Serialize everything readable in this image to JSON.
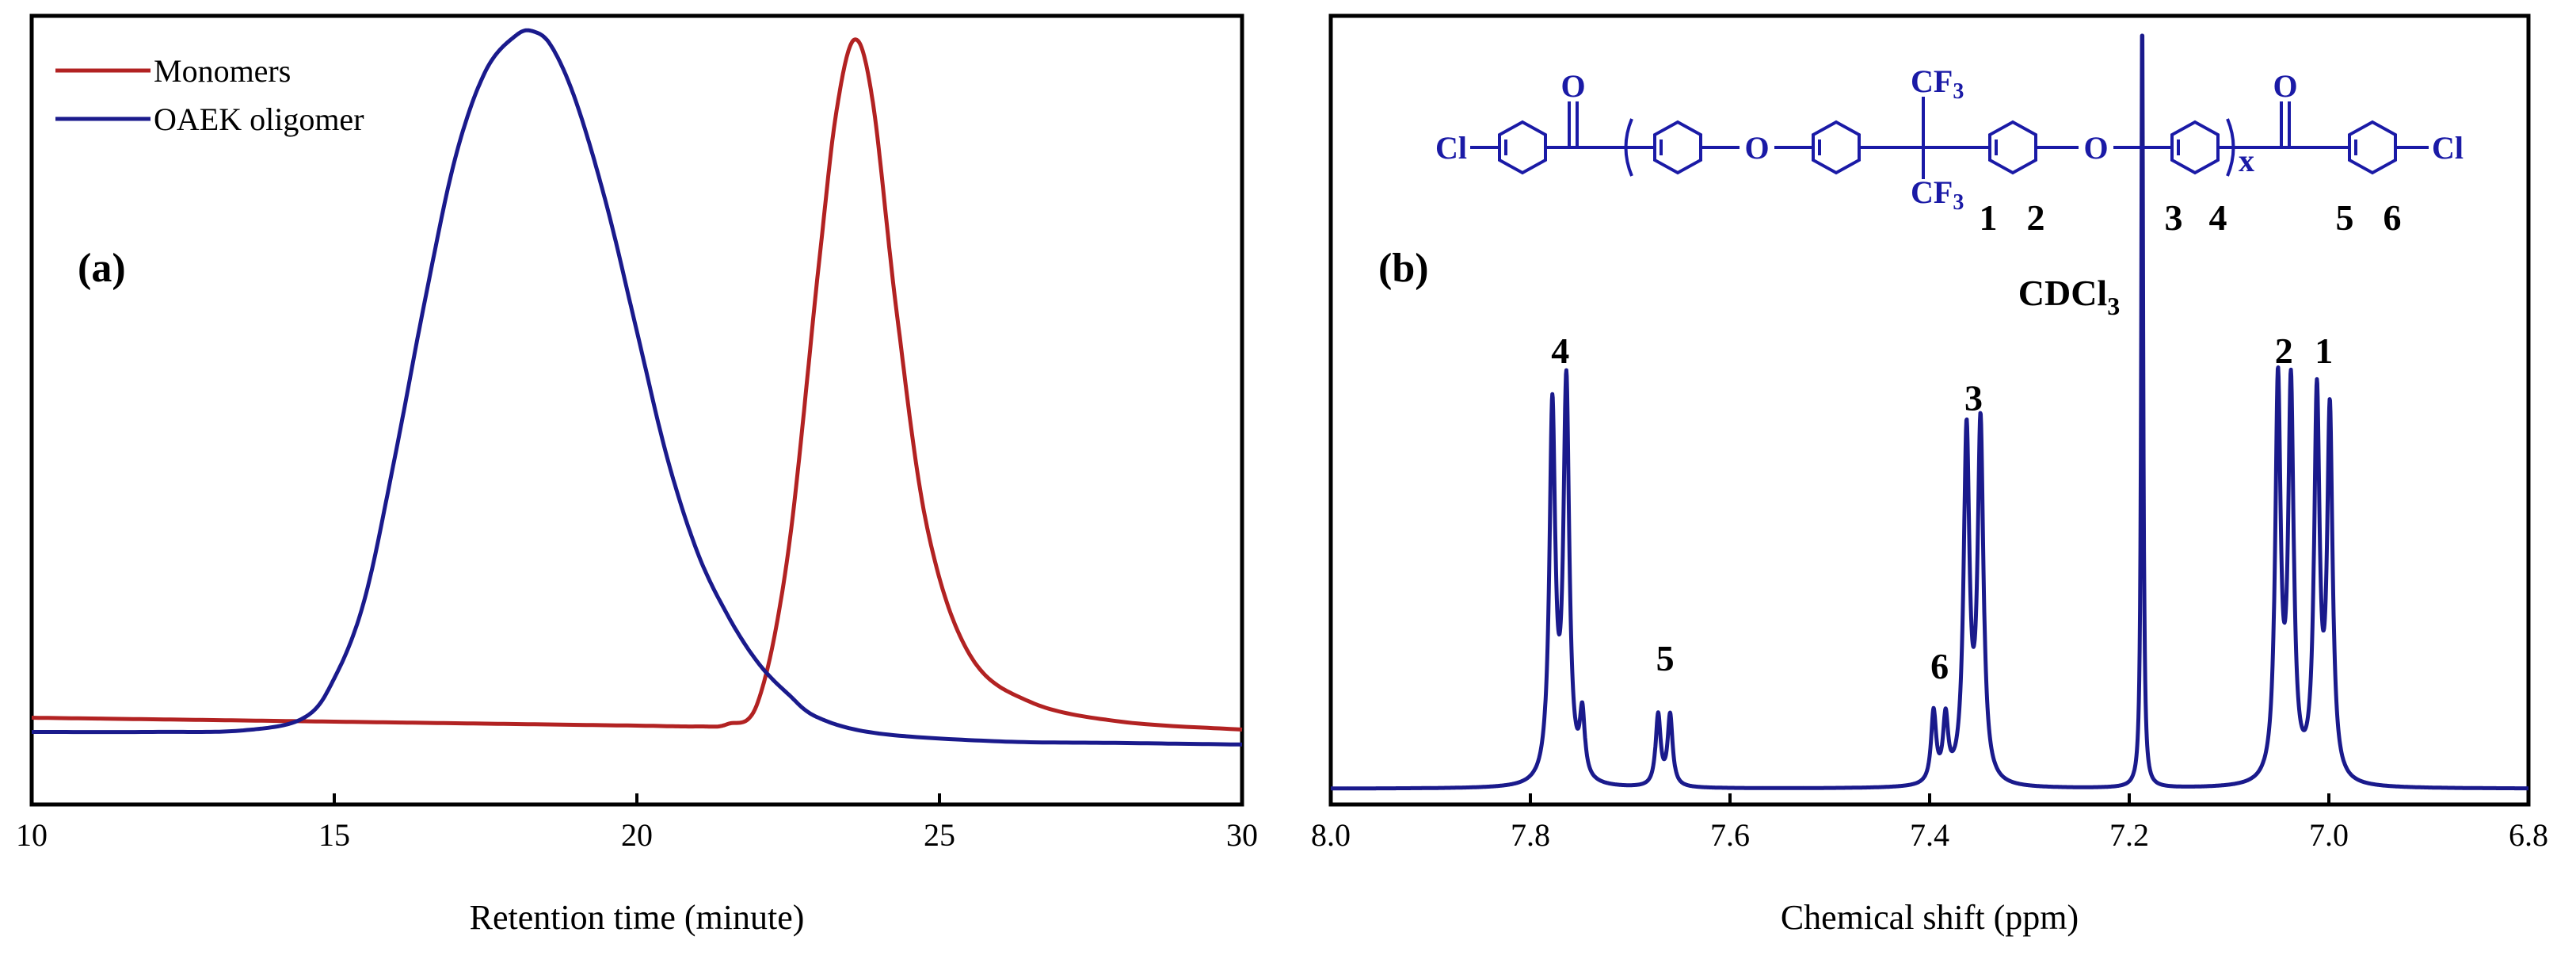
{
  "chart_data": [
    {
      "type": "line",
      "panel_label": "(a)",
      "xlabel": "Retention time (minute)",
      "ylabel": "",
      "xlim": [
        10,
        30
      ],
      "ylim": [
        0,
        1
      ],
      "xticks": [
        "10",
        "15",
        "20",
        "25",
        "30"
      ],
      "legend": {
        "placement": "top-left",
        "entries": [
          "Monomers",
          "OAEK oligomer"
        ]
      },
      "series": [
        {
          "name": "Monomers",
          "color": "#b22222",
          "x": [
            10,
            12,
            14,
            16,
            18,
            20,
            21,
            21.5,
            22,
            22.5,
            23,
            23.3,
            23.6,
            23.9,
            24.3,
            24.8,
            25.5,
            26.5,
            28,
            30
          ],
          "y": [
            0.11,
            0.108,
            0.106,
            0.104,
            0.102,
            0.1,
            0.099,
            0.102,
            0.13,
            0.32,
            0.68,
            0.88,
            0.97,
            0.89,
            0.62,
            0.35,
            0.19,
            0.13,
            0.105,
            0.095
          ]
        },
        {
          "name": "OAEK oligomer",
          "color": "#1a1a8c",
          "x": [
            10,
            12,
            13.5,
            14.5,
            15,
            15.5,
            16,
            16.5,
            17,
            17.5,
            18,
            18.3,
            18.6,
            19,
            19.5,
            20,
            20.5,
            21,
            21.5,
            22,
            22.5,
            23,
            24,
            26,
            28,
            30
          ],
          "y": [
            0.092,
            0.092,
            0.094,
            0.11,
            0.16,
            0.26,
            0.44,
            0.64,
            0.82,
            0.93,
            0.975,
            0.98,
            0.96,
            0.89,
            0.76,
            0.6,
            0.44,
            0.32,
            0.24,
            0.18,
            0.14,
            0.11,
            0.09,
            0.08,
            0.078,
            0.076
          ]
        }
      ]
    },
    {
      "type": "line",
      "panel_label": "(b)",
      "xlabel": "Chemical shift (ppm)",
      "ylabel": "",
      "xlim": [
        8.0,
        6.8
      ],
      "ylim": [
        0,
        1
      ],
      "xticks": [
        "8.0",
        "7.8",
        "7.6",
        "7.4",
        "7.2",
        "7.0",
        "6.8"
      ],
      "baseline": 0.02,
      "series": [
        {
          "name": "",
          "color": "#1a1a8c",
          "peaks": [
            {
              "center": 7.778,
              "height": 0.47,
              "width": 0.0035
            },
            {
              "center": 7.764,
              "height": 0.5,
              "width": 0.0035
            },
            {
              "center": 7.748,
              "height": 0.08,
              "width": 0.003
            },
            {
              "center": 7.672,
              "height": 0.09,
              "width": 0.003
            },
            {
              "center": 7.66,
              "height": 0.09,
              "width": 0.003
            },
            {
              "center": 7.396,
              "height": 0.09,
              "width": 0.003
            },
            {
              "center": 7.384,
              "height": 0.08,
              "width": 0.003
            },
            {
              "center": 7.363,
              "height": 0.44,
              "width": 0.0035
            },
            {
              "center": 7.349,
              "height": 0.45,
              "width": 0.0035
            },
            {
              "center": 7.187,
              "height": 0.98,
              "width": 0.0012
            },
            {
              "center": 7.051,
              "height": 0.5,
              "width": 0.0033
            },
            {
              "center": 7.038,
              "height": 0.49,
              "width": 0.0033
            },
            {
              "center": 7.012,
              "height": 0.48,
              "width": 0.0033
            },
            {
              "center": 6.999,
              "height": 0.46,
              "width": 0.0033
            }
          ]
        }
      ],
      "annotations": [
        {
          "text": "4",
          "x": 7.77,
          "y": 0.56
        },
        {
          "text": "5",
          "x": 7.665,
          "y": 0.17
        },
        {
          "text": "6",
          "x": 7.39,
          "y": 0.16
        },
        {
          "text": "3",
          "x": 7.356,
          "y": 0.5
        },
        {
          "text": "2",
          "x": 7.045,
          "y": 0.56
        },
        {
          "text": "1",
          "x": 7.005,
          "y": 0.56
        }
      ],
      "solvent_label": {
        "main": "CDCl",
        "sub": "3"
      },
      "structure": {
        "atoms": {
          "cl_left": "Cl",
          "cl_right": "Cl",
          "o1": "O",
          "o2": "O",
          "carbonyl_o1": "O",
          "carbonyl_o2": "O",
          "cf3_top": "CF",
          "cf3_bottom": "CF",
          "sub3": "3",
          "repeat": "x"
        },
        "numbers": [
          "1",
          "2",
          "3",
          "4",
          "5",
          "6"
        ]
      }
    }
  ]
}
